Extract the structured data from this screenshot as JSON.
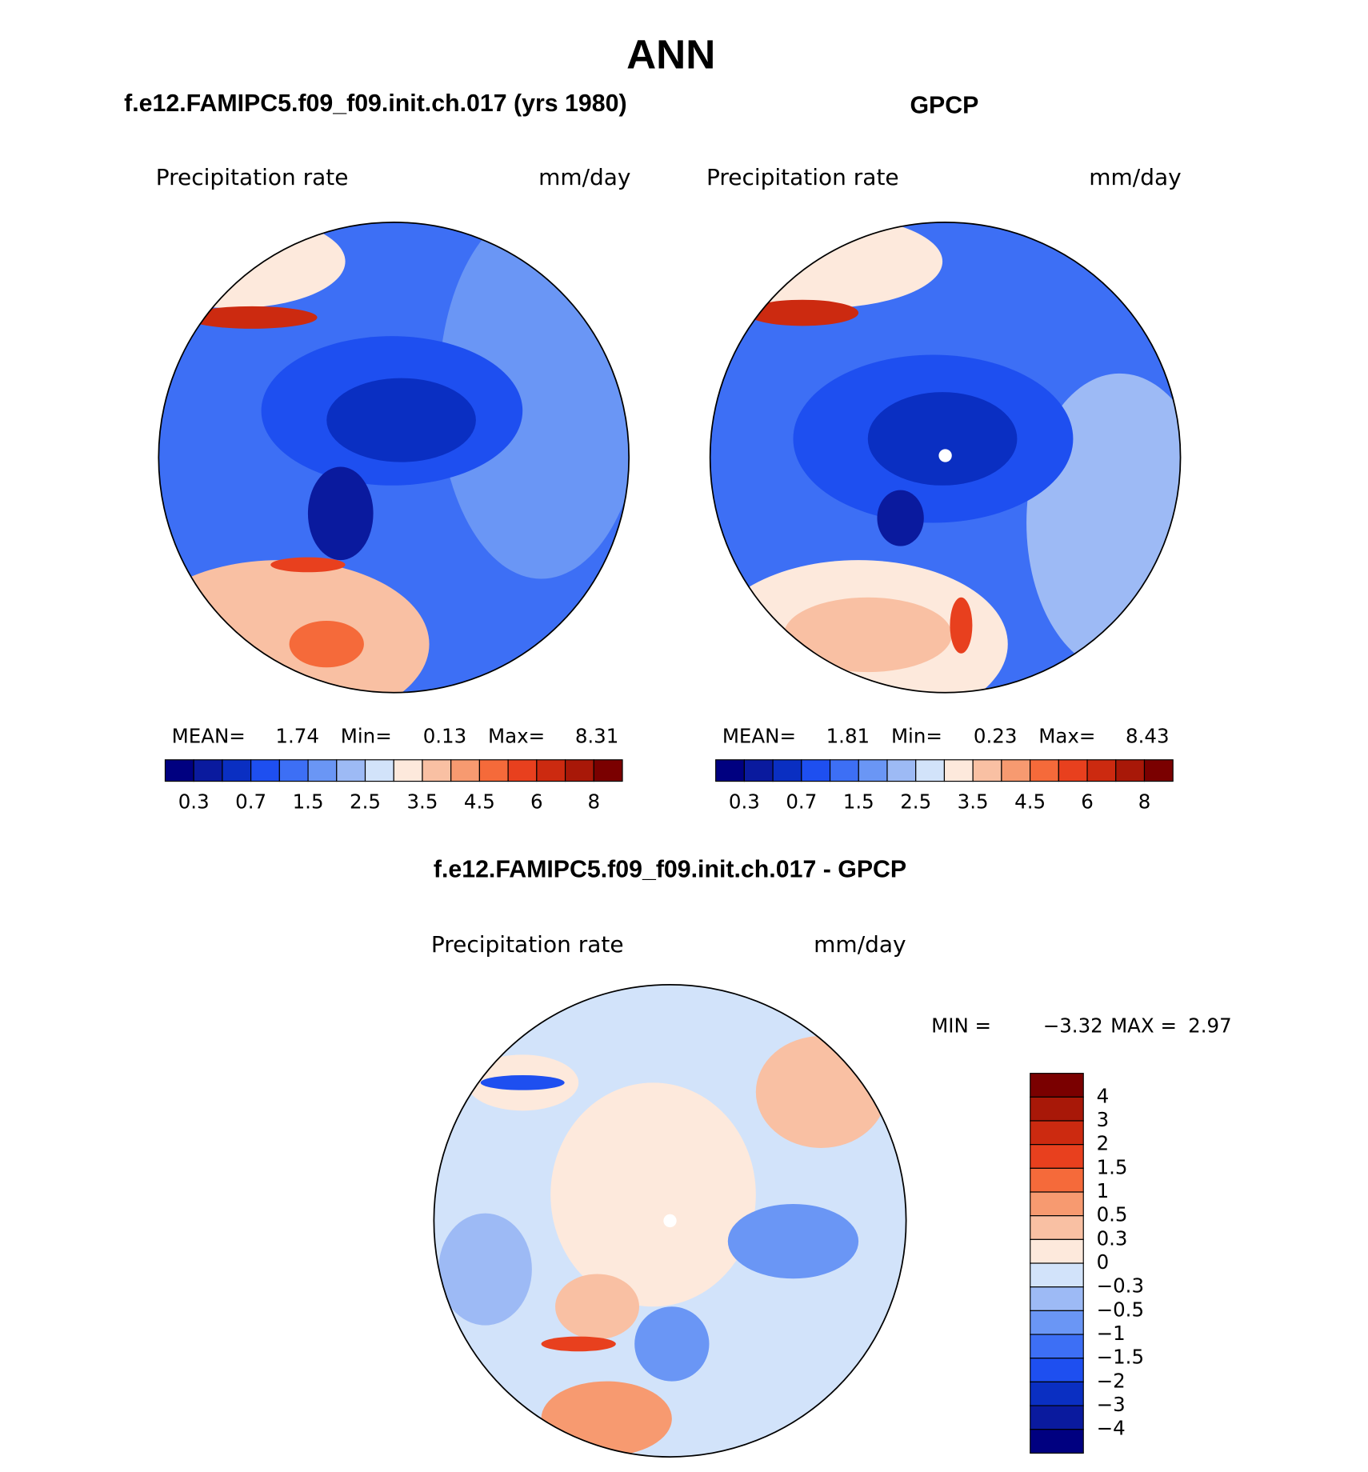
{
  "title": "ANN",
  "panels": [
    {
      "title": "f.e12.FAMIPC5.f09_f09.init.ch.017 (yrs 1980)",
      "variable": "Precipitation rate",
      "units": "mm/day",
      "stats": [
        {
          "label": "MEAN=",
          "value": 1.74
        },
        {
          "label": "Min=",
          "value": 0.13
        },
        {
          "label": "Max=",
          "value": 8.31
        }
      ],
      "colorbar": {
        "colors": [
          "#000080",
          "#0a1a9e",
          "#0a2fc2",
          "#1e4ff0",
          "#3d6ff5",
          "#6a96f5",
          "#9dbaf5",
          "#d2e3fa",
          "#fde9dc",
          "#f9c0a3",
          "#f79a70",
          "#f56a3a",
          "#e8401e",
          "#cc2a10",
          "#a81808",
          "#7a0000"
        ],
        "ticks": [
          0.3,
          0.7,
          1.5,
          2.5,
          3.5,
          4.5,
          6,
          8
        ]
      }
    },
    {
      "title": "GPCP",
      "variable": "Precipitation rate",
      "units": "mm/day",
      "stats": [
        {
          "label": "MEAN=",
          "value": 1.81
        },
        {
          "label": "Min=",
          "value": 0.23
        },
        {
          "label": "Max=",
          "value": 8.43
        }
      ],
      "colorbar": {
        "colors": [
          "#000080",
          "#0a1a9e",
          "#0a2fc2",
          "#1e4ff0",
          "#3d6ff5",
          "#6a96f5",
          "#9dbaf5",
          "#d2e3fa",
          "#fde9dc",
          "#f9c0a3",
          "#f79a70",
          "#f56a3a",
          "#e8401e",
          "#cc2a10",
          "#a81808",
          "#7a0000"
        ],
        "ticks": [
          0.3,
          0.7,
          1.5,
          2.5,
          3.5,
          4.5,
          6,
          8
        ]
      }
    }
  ],
  "difference": {
    "title": "f.e12.FAMIPC5.f09_f09.init.ch.017 - GPCP",
    "variable": "Precipitation rate",
    "units": "mm/day",
    "stats": [
      {
        "label": "MIN =",
        "value": {
          "value": -3.32,
          "label": "−3.32"
        }
      },
      {
        "label": "MAX =",
        "value": 2.97
      }
    ],
    "colorbar": {
      "colors": [
        "#7a0000",
        "#a81808",
        "#cc2a10",
        "#e8401e",
        "#f56a3a",
        "#f79a70",
        "#f9c0a3",
        "#fde9dc",
        "#d2e3fa",
        "#9dbaf5",
        "#6a96f5",
        "#3d6ff5",
        "#1e4ff0",
        "#0a2fc2",
        "#0a1a9e",
        "#000080"
      ],
      "ticks": [
        4,
        3,
        2,
        1.5,
        1,
        0.5,
        0.3,
        0,
        {
          "value": -0.3,
          "label": "−0.3"
        },
        {
          "value": -0.5,
          "label": "−0.5"
        },
        {
          "value": -1,
          "label": "−1"
        },
        {
          "value": -1.5,
          "label": "−1.5"
        },
        {
          "value": -2,
          "label": "−2"
        },
        {
          "value": -3,
          "label": "−3"
        },
        {
          "value": -4,
          "label": "−4"
        }
      ]
    }
  }
}
